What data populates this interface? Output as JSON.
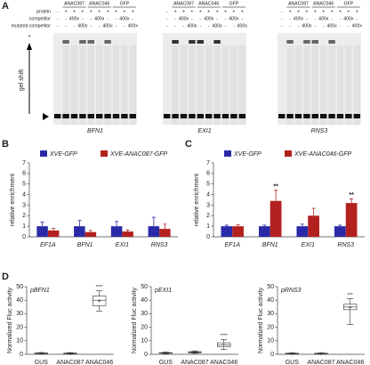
{
  "panel_a": {
    "panel": "A",
    "row_labels": [
      "protein",
      "competitor",
      "mutated competitor"
    ],
    "shift_label": "gel shift",
    "star": "*",
    "gels": [
      {
        "label": "BFN1",
        "groups": [
          "ANAC087",
          "ANAC046",
          "GFP"
        ],
        "rows": [
          [
            "-",
            "+",
            "+",
            "+",
            "+",
            "+",
            "+",
            "+",
            "+",
            "+"
          ],
          [
            "-",
            "-",
            "400x",
            "-",
            "-",
            "400x",
            "-",
            "-",
            "400x",
            "-"
          ],
          [
            "-",
            "-",
            "-",
            "400x",
            "-",
            "-",
            "400x",
            "-",
            "-",
            "400x"
          ]
        ]
      },
      {
        "label": "EXI1",
        "groups": [
          "ANAC087",
          "ANAC046",
          "GFP"
        ],
        "rows": [
          [
            "-",
            "+",
            "+",
            "+",
            "+",
            "+",
            "+",
            "+",
            "+",
            "+"
          ],
          [
            "-",
            "-",
            "400x",
            "-",
            "-",
            "400x",
            "-",
            "-",
            "400x",
            "-"
          ],
          [
            "-",
            "-",
            "-",
            "400x",
            "-",
            "-",
            "400x",
            "-",
            "-",
            "400x"
          ]
        ]
      },
      {
        "label": "RNS3",
        "groups": [
          "ANAC087",
          "ANAC046",
          "GFP"
        ],
        "rows": [
          [
            "-",
            "+",
            "+",
            "+",
            "+",
            "+",
            "+",
            "+",
            "+",
            "+"
          ],
          [
            "-",
            "-",
            "400x",
            "-",
            "-",
            "400x",
            "-",
            "-",
            "400x",
            "-"
          ],
          [
            "-",
            "-",
            "-",
            "400x",
            "-",
            "-",
            "400x",
            "-",
            "-",
            "400x"
          ]
        ]
      }
    ]
  },
  "chart_data": [
    {
      "type": "bar",
      "panel": "B",
      "ylabel": "relative enrichment",
      "categories": [
        "EF1A",
        "BFN1",
        "EXI1",
        "RNS3"
      ],
      "ylim": [
        0,
        7
      ],
      "yticks": [
        0,
        1,
        2,
        3,
        4,
        5,
        6,
        7
      ],
      "series": [
        {
          "name": "XVE-GFP",
          "color": "#2a2aa8",
          "values": [
            1,
            1,
            1,
            1
          ],
          "errors": [
            0.4,
            0.55,
            0.45,
            0.85
          ]
        },
        {
          "name": "XVE-ANAC087-GFP",
          "color": "#b3211f",
          "values": [
            0.6,
            0.45,
            0.5,
            0.75
          ],
          "errors": [
            0.2,
            0.15,
            0.15,
            0.45
          ]
        }
      ]
    },
    {
      "type": "bar",
      "panel": "C",
      "ylabel": "relative enrichment",
      "categories": [
        "EF1A",
        "BFN1",
        "EXI1",
        "RNS3"
      ],
      "ylim": [
        0,
        7
      ],
      "yticks": [
        0,
        1,
        2,
        3,
        4,
        5,
        6,
        7
      ],
      "series": [
        {
          "name": "XVE-GFP",
          "color": "#2a2aa8",
          "values": [
            1,
            1,
            1,
            1
          ],
          "errors": [
            0.1,
            0.1,
            0.2,
            0.1
          ]
        },
        {
          "name": "XVE-ANAC046-GFP",
          "color": "#b3211f",
          "values": [
            1,
            3.4,
            2,
            3.2
          ],
          "errors": [
            0.15,
            1,
            0.7,
            0.4
          ],
          "significance": [
            null,
            "**",
            null,
            "**"
          ]
        }
      ]
    },
    {
      "type": "box",
      "panel": "D",
      "title": "pBFN1",
      "ylabel": "Normalized Fluc activity",
      "categories": [
        "GUS",
        "ANAC087",
        "ANAC046"
      ],
      "ylim": [
        0,
        50
      ],
      "yticks": [
        0,
        10,
        20,
        30,
        40,
        50
      ],
      "boxes": [
        {
          "min": 0.3,
          "q1": 0.6,
          "median": 0.8,
          "q3": 1,
          "max": 1.3,
          "mean": 0.8
        },
        {
          "min": 0.3,
          "q1": 0.5,
          "median": 0.7,
          "q3": 0.9,
          "max": 1.2,
          "mean": 0.7
        },
        {
          "min": 32,
          "q1": 36,
          "median": 40,
          "q3": 43,
          "max": 47,
          "mean": 39.5
        }
      ],
      "significance": [
        null,
        null,
        "****"
      ]
    },
    {
      "type": "box",
      "title": "pEXI1",
      "ylabel": "Normalized Fluc activity",
      "categories": [
        "GUS",
        "ANAC087",
        "ANAC046"
      ],
      "ylim": [
        0,
        50
      ],
      "yticks": [
        0,
        10,
        20,
        30,
        40,
        50
      ],
      "boxes": [
        {
          "min": 0.5,
          "q1": 0.8,
          "median": 1,
          "q3": 1.2,
          "max": 1.6,
          "mean": 1
        },
        {
          "min": 0.8,
          "q1": 1.2,
          "median": 1.5,
          "q3": 1.9,
          "max": 2.5,
          "mean": 1.5
        },
        {
          "min": 3.5,
          "q1": 5.5,
          "median": 7,
          "q3": 8.5,
          "max": 11,
          "mean": 7.2
        }
      ],
      "significance": [
        null,
        null,
        "****"
      ]
    },
    {
      "type": "box",
      "title": "pRNS3",
      "ylabel": "Normalized Fluc activity",
      "categories": [
        "GUS",
        "ANAC087",
        "ANAC046"
      ],
      "ylim": [
        0,
        50
      ],
      "yticks": [
        0,
        10,
        20,
        30,
        40,
        50
      ],
      "boxes": [
        {
          "min": 0.2,
          "q1": 0.4,
          "median": 0.6,
          "q3": 0.8,
          "max": 1,
          "mean": 0.6
        },
        {
          "min": 0.2,
          "q1": 0.4,
          "median": 0.6,
          "q3": 0.8,
          "max": 1,
          "mean": 0.6
        },
        {
          "min": 22,
          "q1": 33,
          "median": 35,
          "q3": 37,
          "max": 41,
          "mean": 34.5
        }
      ],
      "significance": [
        null,
        null,
        "***"
      ]
    }
  ]
}
